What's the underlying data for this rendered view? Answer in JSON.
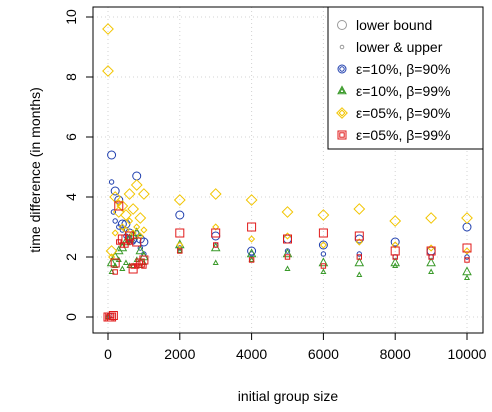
{
  "chart_data": {
    "type": "scatter",
    "title": "",
    "xlabel": "initial group size",
    "ylabel": "time difference (in months)",
    "xlim": [
      0,
      10000
    ],
    "ylim": [
      0,
      10
    ],
    "x_ticks": [
      0,
      2000,
      4000,
      6000,
      8000,
      10000
    ],
    "y_ticks": [
      0,
      2,
      4,
      6,
      8,
      10
    ],
    "grid": true,
    "legend_position": "top-right",
    "series": [
      {
        "name": "ε=10%, β=90%",
        "color": "#1f3fae",
        "marker": "circle",
        "lower": [
          [
            100,
            5.4
          ],
          [
            200,
            4.2
          ],
          [
            300,
            3.9
          ],
          [
            400,
            3.1
          ],
          [
            500,
            3.1
          ],
          [
            600,
            2.8
          ],
          [
            700,
            2.6
          ],
          [
            800,
            4.7
          ],
          [
            900,
            2.6
          ],
          [
            1000,
            2.5
          ],
          [
            2000,
            3.4
          ],
          [
            3000,
            2.7
          ],
          [
            4000,
            2.2
          ],
          [
            5000,
            2.6
          ],
          [
            6000,
            2.4
          ],
          [
            7000,
            2.6
          ],
          [
            8000,
            2.5
          ],
          [
            9000,
            2.2
          ],
          [
            10000,
            3.0
          ]
        ],
        "upper": [
          [
            0,
            0.0
          ],
          [
            50,
            0.05
          ],
          [
            100,
            4.5
          ],
          [
            150,
            3.5
          ],
          [
            200,
            3.2
          ],
          [
            300,
            3.0
          ],
          [
            400,
            2.9
          ],
          [
            500,
            2.7
          ],
          [
            600,
            2.6
          ],
          [
            700,
            2.5
          ],
          [
            800,
            2.8
          ],
          [
            900,
            2.3
          ],
          [
            1000,
            2.1
          ],
          [
            2000,
            2.3
          ],
          [
            3000,
            2.4
          ],
          [
            4000,
            2.1
          ],
          [
            5000,
            2.2
          ],
          [
            6000,
            2.1
          ],
          [
            7000,
            2.1
          ],
          [
            8000,
            2.0
          ],
          [
            9000,
            2.0
          ],
          [
            10000,
            2.0
          ]
        ]
      },
      {
        "name": "ε=10%, β=99%",
        "color": "#3a9a2a",
        "marker": "triangle",
        "lower": [
          [
            100,
            1.8
          ],
          [
            200,
            2.0
          ],
          [
            300,
            2.2
          ],
          [
            400,
            2.3
          ],
          [
            500,
            2.5
          ],
          [
            600,
            2.6
          ],
          [
            700,
            2.7
          ],
          [
            800,
            2.8
          ],
          [
            900,
            2.2
          ],
          [
            1000,
            2.0
          ],
          [
            2000,
            2.4
          ],
          [
            3000,
            2.3
          ],
          [
            4000,
            2.1
          ],
          [
            5000,
            2.1
          ],
          [
            6000,
            1.8
          ],
          [
            7000,
            1.8
          ],
          [
            8000,
            1.8
          ],
          [
            9000,
            1.8
          ],
          [
            10000,
            1.5
          ]
        ],
        "upper": [
          [
            0,
            0.0
          ],
          [
            100,
            1.5
          ],
          [
            200,
            1.7
          ],
          [
            300,
            1.9
          ],
          [
            400,
            1.6
          ],
          [
            500,
            1.8
          ],
          [
            600,
            1.7
          ],
          [
            700,
            1.7
          ],
          [
            800,
            1.9
          ],
          [
            900,
            1.7
          ],
          [
            1000,
            1.8
          ],
          [
            2000,
            2.2
          ],
          [
            3000,
            1.8
          ],
          [
            4000,
            1.9
          ],
          [
            5000,
            1.6
          ],
          [
            6000,
            1.5
          ],
          [
            7000,
            1.4
          ],
          [
            8000,
            1.7
          ],
          [
            9000,
            1.5
          ],
          [
            10000,
            1.3
          ]
        ]
      },
      {
        "name": "ε=05%, β=90%",
        "color": "#f2c500",
        "marker": "diamond",
        "lower": [
          [
            0,
            9.6
          ],
          [
            0,
            8.2
          ],
          [
            100,
            2.2
          ],
          [
            200,
            4.0
          ],
          [
            300,
            3.5
          ],
          [
            400,
            3.7
          ],
          [
            500,
            3.4
          ],
          [
            600,
            4.1
          ],
          [
            700,
            3.6
          ],
          [
            800,
            4.4
          ],
          [
            900,
            3.3
          ],
          [
            1000,
            4.1
          ],
          [
            2000,
            3.9
          ],
          [
            3000,
            4.1
          ],
          [
            4000,
            3.9
          ],
          [
            5000,
            3.5
          ],
          [
            6000,
            3.4
          ],
          [
            7000,
            3.6
          ],
          [
            8000,
            3.2
          ],
          [
            9000,
            3.3
          ],
          [
            10000,
            3.3
          ]
        ],
        "upper": [
          [
            100,
            2.0
          ],
          [
            200,
            2.8
          ],
          [
            300,
            3.8
          ],
          [
            400,
            3.0
          ],
          [
            500,
            2.9
          ],
          [
            600,
            3.2
          ],
          [
            700,
            2.8
          ],
          [
            800,
            3.0
          ],
          [
            900,
            2.7
          ],
          [
            1000,
            2.9
          ],
          [
            2000,
            2.4
          ],
          [
            3000,
            3.0
          ],
          [
            4000,
            2.6
          ],
          [
            5000,
            2.7
          ],
          [
            6000,
            2.4
          ],
          [
            7000,
            2.5
          ],
          [
            8000,
            2.4
          ],
          [
            9000,
            2.3
          ],
          [
            10000,
            2.2
          ]
        ]
      },
      {
        "name": "ε=05%, β=99%",
        "color": "#e01a1a",
        "marker": "square",
        "lower": [
          [
            0,
            0.0
          ],
          [
            50,
            0.0
          ],
          [
            100,
            0.0
          ],
          [
            150,
            0.05
          ],
          [
            200,
            1.8
          ],
          [
            300,
            3.7
          ],
          [
            400,
            2.6
          ],
          [
            500,
            2.6
          ],
          [
            600,
            2.7
          ],
          [
            700,
            1.6
          ],
          [
            800,
            2.5
          ],
          [
            900,
            1.8
          ],
          [
            1000,
            1.9
          ],
          [
            2000,
            2.8
          ],
          [
            3000,
            2.8
          ],
          [
            4000,
            3.0
          ],
          [
            5000,
            2.6
          ],
          [
            6000,
            2.8
          ],
          [
            7000,
            2.7
          ],
          [
            8000,
            2.2
          ],
          [
            9000,
            2.2
          ],
          [
            10000,
            2.3
          ]
        ],
        "upper": [
          [
            0,
            0.0
          ],
          [
            100,
            0.05
          ],
          [
            200,
            1.5
          ],
          [
            300,
            2.5
          ],
          [
            400,
            2.4
          ],
          [
            500,
            2.4
          ],
          [
            600,
            2.5
          ],
          [
            700,
            1.7
          ],
          [
            800,
            1.7
          ],
          [
            900,
            1.8
          ],
          [
            1000,
            1.7
          ],
          [
            2000,
            2.2
          ],
          [
            3000,
            2.4
          ],
          [
            4000,
            1.9
          ],
          [
            5000,
            2.0
          ],
          [
            6000,
            1.7
          ],
          [
            7000,
            2.0
          ],
          [
            8000,
            2.0
          ],
          [
            9000,
            2.0
          ],
          [
            10000,
            1.9
          ]
        ]
      }
    ],
    "legend": [
      {
        "label": "lower bound",
        "marker": "circle-large",
        "color": "#9a9a9a"
      },
      {
        "label": "lower & upper",
        "marker": "circle-small",
        "color": "#9a9a9a"
      },
      {
        "label": "ε=10%, β=90%",
        "marker": "circle",
        "color": "#1f3fae"
      },
      {
        "label": "ε=10%, β=99%",
        "marker": "triangle",
        "color": "#3a9a2a"
      },
      {
        "label": "ε=05%, β=90%",
        "marker": "diamond",
        "color": "#f2c500"
      },
      {
        "label": "ε=05%, β=99%",
        "marker": "square",
        "color": "#e01a1a"
      }
    ]
  }
}
